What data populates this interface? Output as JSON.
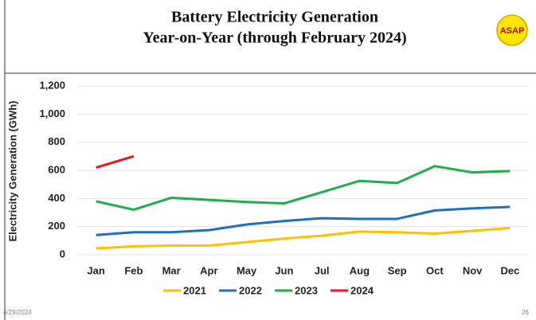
{
  "chart_data": {
    "type": "line",
    "title": "Battery Electricity Generation",
    "subtitle": "Year-on-Year (through February 2024)",
    "y_label": "Electricity Generation (GWh)",
    "categories": [
      "Jan",
      "Feb",
      "Mar",
      "Apr",
      "May",
      "Jun",
      "Jul",
      "Aug",
      "Sep",
      "Oct",
      "Nov",
      "Dec"
    ],
    "series": [
      {
        "name": "2021",
        "color": "#ffc000",
        "values": [
          45,
          60,
          65,
          65,
          90,
          115,
          135,
          165,
          160,
          150,
          170,
          190
        ]
      },
      {
        "name": "2022",
        "color": "#1f6fbf",
        "values": [
          140,
          160,
          160,
          175,
          215,
          240,
          260,
          255,
          255,
          315,
          330,
          340
        ]
      },
      {
        "name": "2023",
        "color": "#1fae4b",
        "values": [
          380,
          320,
          405,
          390,
          375,
          365,
          445,
          525,
          510,
          630,
          585,
          595
        ]
      },
      {
        "name": "2024",
        "color": "#e8191c",
        "values": [
          620,
          700,
          null,
          null,
          null,
          null,
          null,
          null,
          null,
          null,
          null,
          null
        ]
      }
    ],
    "ylim": [
      0,
      1200
    ],
    "yticks": [
      0,
      200,
      400,
      600,
      800,
      {
        "value": 1000,
        "label": "1,000"
      },
      {
        "value": 1200,
        "label": "1,200"
      }
    ],
    "grid": true,
    "legend": "bottom"
  },
  "logo": "ASAP",
  "footer": {
    "date": "4/29/2024",
    "page": "26"
  }
}
